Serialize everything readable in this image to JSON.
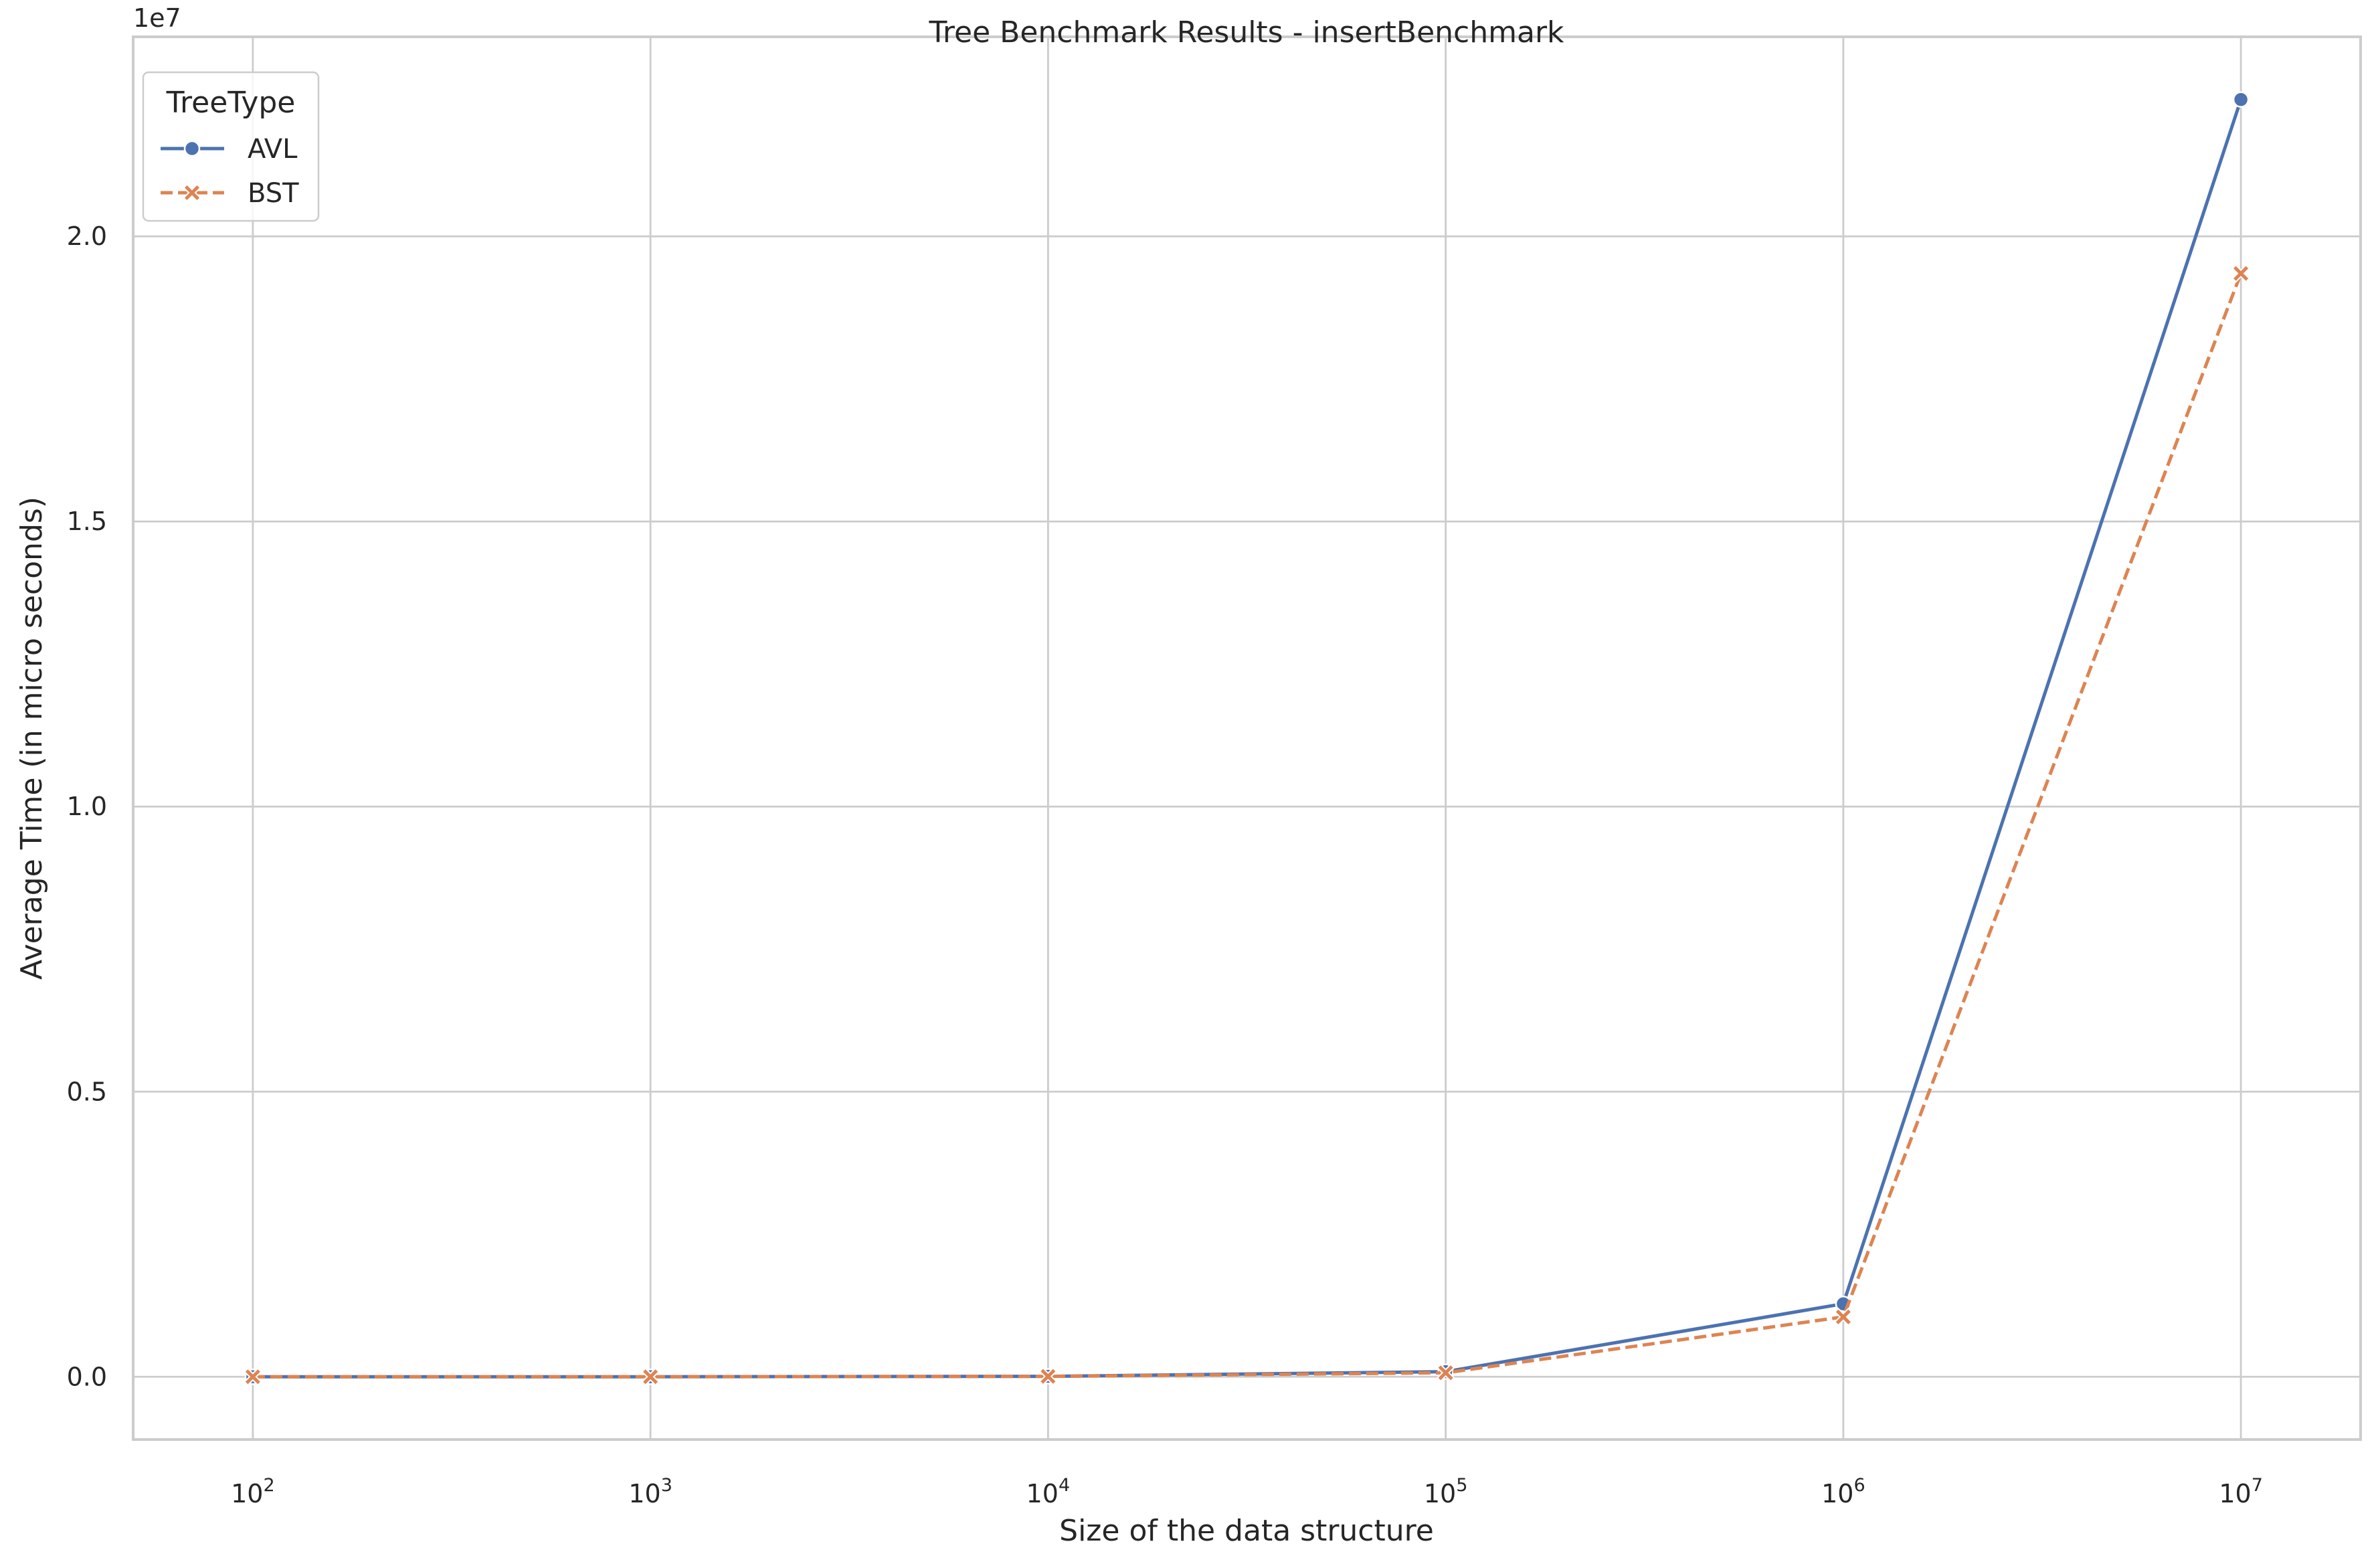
{
  "chart_data": {
    "type": "line",
    "title": "Tree Benchmark Results - insertBenchmark",
    "xlabel": "Size of the data structure",
    "ylabel": "Average Time (in micro seconds)",
    "x_scale": "log",
    "x": [
      100,
      1000,
      10000,
      100000,
      1000000,
      10000000
    ],
    "xlim": [
      50,
      20000000
    ],
    "ylim": [
      -1100000,
      23500000
    ],
    "y_offset_label": "1e7",
    "x_ticks": [
      {
        "value": 100,
        "base": "10",
        "exp": "2"
      },
      {
        "value": 1000,
        "base": "10",
        "exp": "3"
      },
      {
        "value": 10000,
        "base": "10",
        "exp": "4"
      },
      {
        "value": 100000,
        "base": "10",
        "exp": "5"
      },
      {
        "value": 1000000,
        "base": "10",
        "exp": "6"
      },
      {
        "value": 10000000,
        "base": "10",
        "exp": "7"
      }
    ],
    "y_ticks": [
      {
        "value": 0,
        "label": "0.0"
      },
      {
        "value": 5000000,
        "label": "0.5"
      },
      {
        "value": 10000000,
        "label": "1.0"
      },
      {
        "value": 15000000,
        "label": "1.5"
      },
      {
        "value": 20000000,
        "label": "2.0"
      }
    ],
    "grid": true,
    "legend": {
      "title": "TreeType",
      "position": "top-left"
    },
    "series": [
      {
        "name": "AVL",
        "color": "#4c72b0",
        "marker": "circle",
        "dash": "solid",
        "values": [
          50,
          600,
          8000,
          90000,
          1280000,
          22400000
        ]
      },
      {
        "name": "BST",
        "color": "#dd8452",
        "marker": "x",
        "dash": "dashed",
        "values": [
          50,
          500,
          7000,
          70000,
          1050000,
          19350000
        ]
      }
    ]
  }
}
